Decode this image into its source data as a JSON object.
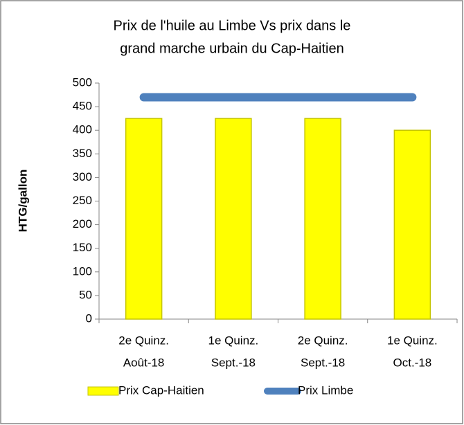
{
  "chart_data": {
    "type": "bar",
    "title": [
      "Prix de l'huile au Limbe Vs prix dans le",
      "grand marche urbain du Cap-Haitien"
    ],
    "y_label": "HTG/gallon",
    "categories": [
      [
        "2e Quinz.",
        "Août-18"
      ],
      [
        "1e Quinz.",
        "Sept.-18"
      ],
      [
        "2e Quinz.",
        "Sept.-18"
      ],
      [
        "1e Quinz.",
        "Oct.-18"
      ]
    ],
    "series": [
      {
        "name": "Prix Cap-Haitien",
        "type": "bar",
        "color": "#ffff00",
        "values": [
          425,
          425,
          425,
          400
        ]
      },
      {
        "name": "Prix Limbe",
        "type": "line",
        "color": "#4f81bd",
        "values": [
          470,
          470,
          470,
          470
        ]
      }
    ],
    "ylim": [
      0,
      500
    ],
    "yticks": [
      0,
      50,
      100,
      150,
      200,
      250,
      300,
      350,
      400,
      450,
      500
    ],
    "legend": "bottom"
  }
}
